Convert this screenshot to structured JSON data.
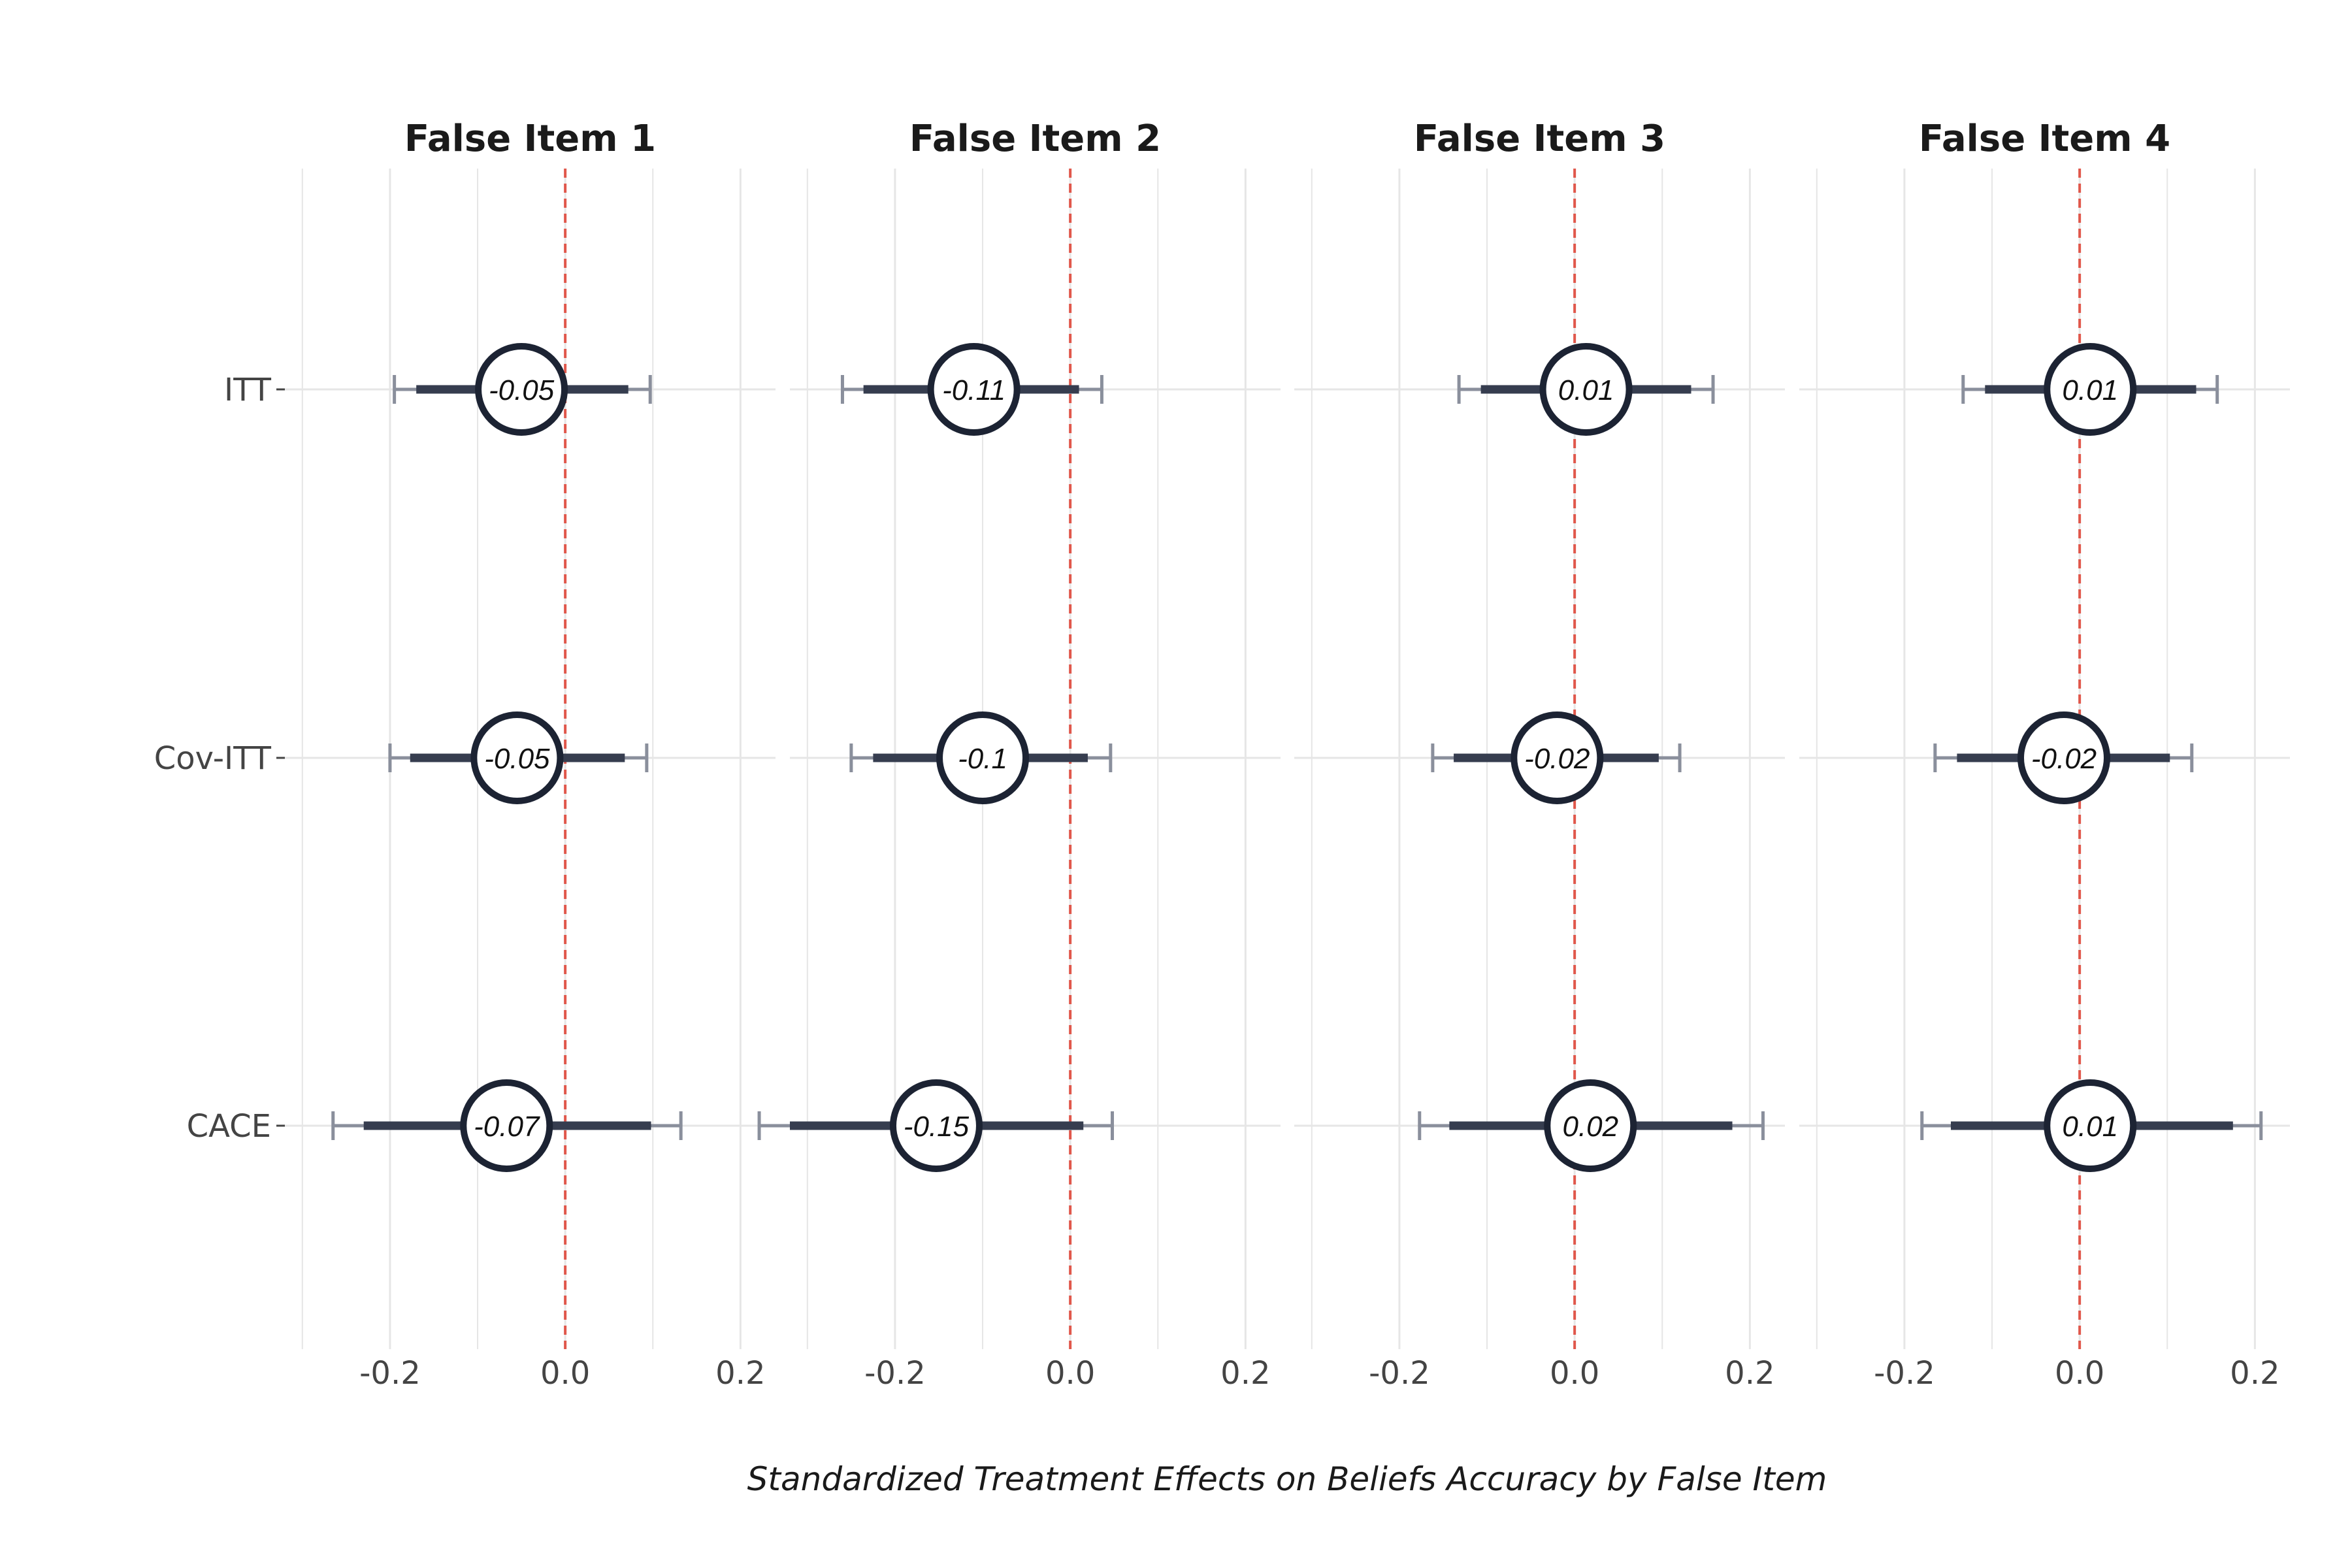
{
  "chart_data": {
    "type": "forest",
    "xlabel": "Standardized Treatment Effects on Beliefs Accuracy by False Item",
    "rows": [
      "ITT",
      "Cov-ITT",
      "CACE"
    ],
    "xlim": [
      -0.32,
      0.24
    ],
    "x_ticks": [
      -0.2,
      0.0,
      0.2
    ],
    "x_tick_labels": [
      "-0.2",
      "0.0",
      "0.2"
    ],
    "reference_line": 0,
    "colors": {
      "reference": "#e0574b",
      "point": "#1c2333",
      "outer_ci": "#8a8f9c",
      "inner_ci": "#363d4f",
      "grid": "#e6e6e6"
    },
    "panels": [
      {
        "title": "False Item 1",
        "estimates": [
          {
            "row": "ITT",
            "estimate": -0.05,
            "label": "-0.05",
            "ci95": [
              -0.195,
              0.097
            ],
            "ci90": [
              -0.17,
              0.072
            ]
          },
          {
            "row": "Cov-ITT",
            "estimate": -0.055,
            "label": "-0.05",
            "ci95": [
              -0.2,
              0.093
            ],
            "ci90": [
              -0.177,
              0.068
            ]
          },
          {
            "row": "CACE",
            "estimate": -0.067,
            "label": "-0.07",
            "ci95": [
              -0.265,
              0.132
            ],
            "ci90": [
              -0.23,
              0.098
            ]
          }
        ]
      },
      {
        "title": "False Item 2",
        "estimates": [
          {
            "row": "ITT",
            "estimate": -0.11,
            "label": "-0.11",
            "ci95": [
              -0.26,
              0.036
            ],
            "ci90": [
              -0.236,
              0.01
            ]
          },
          {
            "row": "Cov-ITT",
            "estimate": -0.1,
            "label": "-0.1",
            "ci95": [
              -0.25,
              0.046
            ],
            "ci90": [
              -0.225,
              0.02
            ]
          },
          {
            "row": "CACE",
            "estimate": -0.153,
            "label": "-0.15",
            "ci95": [
              -0.355,
              0.048
            ],
            "ci90": [
              -0.32,
              0.015
            ]
          }
        ]
      },
      {
        "title": "False Item 3",
        "estimates": [
          {
            "row": "ITT",
            "estimate": 0.013,
            "label": "0.01",
            "ci95": [
              -0.132,
              0.158
            ],
            "ci90": [
              -0.107,
              0.133
            ]
          },
          {
            "row": "Cov-ITT",
            "estimate": -0.02,
            "label": "-0.02",
            "ci95": [
              -0.162,
              0.12
            ],
            "ci90": [
              -0.138,
              0.096
            ]
          },
          {
            "row": "CACE",
            "estimate": 0.018,
            "label": "0.02",
            "ci95": [
              -0.177,
              0.215
            ],
            "ci90": [
              -0.143,
              0.18
            ]
          }
        ]
      },
      {
        "title": "False Item 4",
        "estimates": [
          {
            "row": "ITT",
            "estimate": 0.012,
            "label": "0.01",
            "ci95": [
              -0.133,
              0.157
            ],
            "ci90": [
              -0.108,
              0.133
            ]
          },
          {
            "row": "Cov-ITT",
            "estimate": -0.018,
            "label": "-0.02",
            "ci95": [
              -0.165,
              0.128
            ],
            "ci90": [
              -0.14,
              0.103
            ]
          },
          {
            "row": "CACE",
            "estimate": 0.012,
            "label": "0.01",
            "ci95": [
              -0.18,
              0.207
            ],
            "ci90": [
              -0.147,
              0.175
            ]
          }
        ]
      }
    ]
  }
}
